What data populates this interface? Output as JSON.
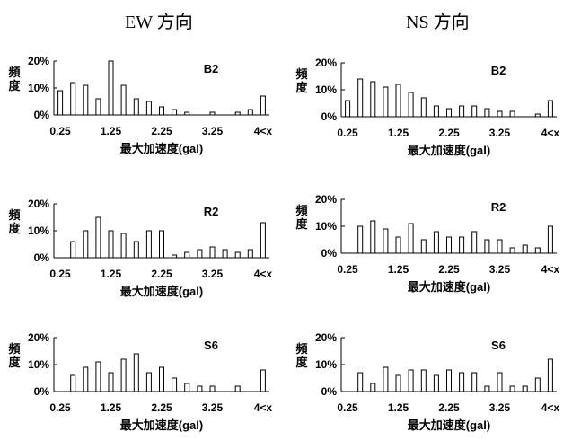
{
  "column_titles": [
    "EW 方向",
    "NS 方向"
  ],
  "chart_data": [
    {
      "type": "bar",
      "direction": "EW",
      "panel_label": "B2",
      "ylabel": "頻度",
      "xlabel": "最大加速度(gal)",
      "ylim": [
        0,
        20
      ],
      "y_ticks": [
        "0%",
        "10%",
        "20%"
      ],
      "x_tick_labels": [
        "0.25",
        "1.25",
        "2.25",
        "3.25",
        "4<x"
      ],
      "bin_width": 0.25,
      "categories": [
        0.25,
        0.5,
        0.75,
        1.0,
        1.25,
        1.5,
        1.75,
        2.0,
        2.25,
        2.5,
        2.75,
        3.0,
        3.25,
        3.5,
        3.75,
        4.0,
        "4<x"
      ],
      "values": [
        9,
        12,
        11,
        6,
        20,
        11,
        6,
        5,
        3,
        2,
        1,
        0,
        1,
        0,
        1,
        2,
        7
      ]
    },
    {
      "type": "bar",
      "direction": "NS",
      "panel_label": "B2",
      "ylabel": "頻度",
      "xlabel": "最大加速度(gal)",
      "ylim": [
        0,
        20
      ],
      "y_ticks": [
        "0%",
        "10%",
        "20%"
      ],
      "x_tick_labels": [
        "0.25",
        "1.25",
        "2.25",
        "3.25",
        "4<x"
      ],
      "bin_width": 0.25,
      "categories": [
        0.25,
        0.5,
        0.75,
        1.0,
        1.25,
        1.5,
        1.75,
        2.0,
        2.25,
        2.5,
        2.75,
        3.0,
        3.25,
        3.5,
        3.75,
        4.0,
        "4<x"
      ],
      "values": [
        6,
        14,
        13,
        11,
        12,
        9,
        7,
        4,
        3,
        4,
        4,
        3,
        2,
        2,
        0,
        1,
        6
      ]
    },
    {
      "type": "bar",
      "direction": "EW",
      "panel_label": "R2",
      "ylabel": "頻度",
      "xlabel": "最大加速度(gal)",
      "ylim": [
        0,
        20
      ],
      "y_ticks": [
        "0%",
        "10%",
        "20%"
      ],
      "x_tick_labels": [
        "0.25",
        "1.25",
        "2.25",
        "3.25",
        "4<x"
      ],
      "bin_width": 0.25,
      "categories": [
        0.25,
        0.5,
        0.75,
        1.0,
        1.25,
        1.5,
        1.75,
        2.0,
        2.25,
        2.5,
        2.75,
        3.0,
        3.25,
        3.5,
        3.75,
        4.0,
        "4<x"
      ],
      "values": [
        0,
        6,
        10,
        15,
        10,
        9,
        6,
        10,
        10,
        1,
        2,
        3,
        4,
        3,
        2,
        3,
        13
      ]
    },
    {
      "type": "bar",
      "direction": "NS",
      "panel_label": "R2",
      "ylabel": "頻度",
      "xlabel": "最大加速度(gal)",
      "ylim": [
        0,
        20
      ],
      "y_ticks": [
        "0%",
        "10%",
        "20%"
      ],
      "x_tick_labels": [
        "0.25",
        "1.25",
        "2.25",
        "3.25",
        "4<x"
      ],
      "bin_width": 0.25,
      "categories": [
        0.25,
        0.5,
        0.75,
        1.0,
        1.25,
        1.5,
        1.75,
        2.0,
        2.25,
        2.5,
        2.75,
        3.0,
        3.25,
        3.5,
        3.75,
        4.0,
        "4<x"
      ],
      "values": [
        0,
        10,
        12,
        9,
        6,
        11,
        5,
        8,
        6,
        6,
        8,
        5,
        5,
        2,
        3,
        2,
        10
      ]
    },
    {
      "type": "bar",
      "direction": "EW",
      "panel_label": "S6",
      "ylabel": "頻度",
      "xlabel": "最大加速度(gal)",
      "ylim": [
        0,
        20
      ],
      "y_ticks": [
        "0%",
        "10%",
        "20%"
      ],
      "x_tick_labels": [
        "0.25",
        "1.25",
        "2.25",
        "3.25",
        "4<x"
      ],
      "bin_width": 0.25,
      "categories": [
        0.25,
        0.5,
        0.75,
        1.0,
        1.25,
        1.5,
        1.75,
        2.0,
        2.25,
        2.5,
        2.75,
        3.0,
        3.25,
        3.5,
        3.75,
        4.0,
        "4<x"
      ],
      "values": [
        0,
        6,
        9,
        11,
        7,
        12,
        14,
        7,
        9,
        5,
        3,
        2,
        2,
        0,
        2,
        0,
        8
      ]
    },
    {
      "type": "bar",
      "direction": "NS",
      "panel_label": "S6",
      "ylabel": "頻度",
      "xlabel": "最大加速度(gal)",
      "ylim": [
        0,
        20
      ],
      "y_ticks": [
        "0%",
        "10%",
        "20%"
      ],
      "x_tick_labels": [
        "0.25",
        "1.25",
        "2.25",
        "3.25",
        "4<x"
      ],
      "bin_width": 0.25,
      "categories": [
        0.25,
        0.5,
        0.75,
        1.0,
        1.25,
        1.5,
        1.75,
        2.0,
        2.25,
        2.5,
        2.75,
        3.0,
        3.25,
        3.5,
        3.75,
        4.0,
        "4<x"
      ],
      "values": [
        0,
        7,
        3,
        9,
        6,
        8,
        8,
        6,
        8,
        7,
        7,
        2,
        7,
        2,
        2,
        5,
        12
      ]
    }
  ]
}
